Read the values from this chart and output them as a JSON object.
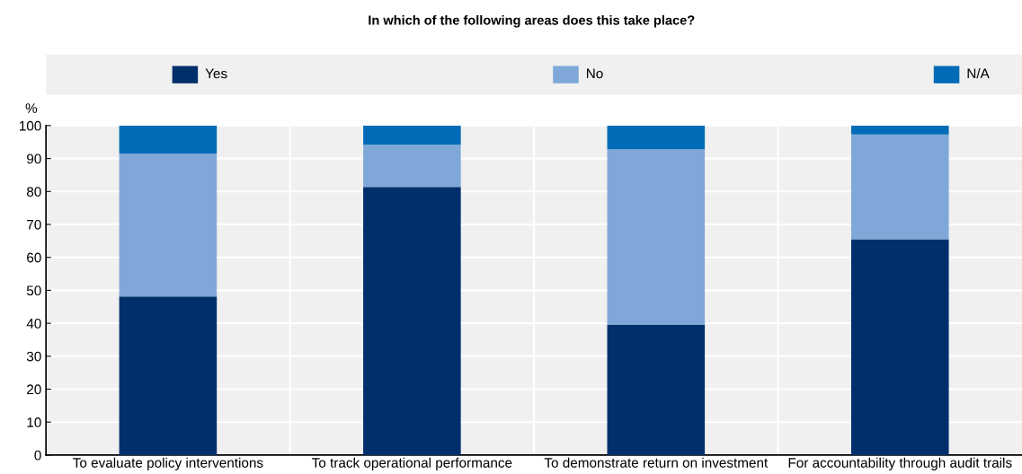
{
  "chart_data": {
    "type": "bar",
    "title": "In which of the following areas does this take place?",
    "ylabel": "%",
    "categories": [
      "To evaluate policy interventions",
      "To track operational performance",
      "To demonstrate return on investment",
      "For accountability through audit trails"
    ],
    "stacked": true,
    "series": [
      {
        "name": "Yes",
        "color": "#002f6c",
        "values": [
          48.1,
          81.4,
          39.6,
          65.5
        ]
      },
      {
        "name": "No",
        "color": "#7fa8d9",
        "values": [
          43.4,
          12.8,
          53.2,
          31.8
        ]
      },
      {
        "name": "N/A",
        "color": "#006bb6",
        "values": [
          8.5,
          5.8,
          7.2,
          2.7
        ]
      }
    ],
    "ylim": [
      0,
      100
    ],
    "yticks": [
      0,
      10,
      20,
      30,
      40,
      50,
      60,
      70,
      80,
      90,
      100
    ],
    "grid": true,
    "legend": "top"
  }
}
